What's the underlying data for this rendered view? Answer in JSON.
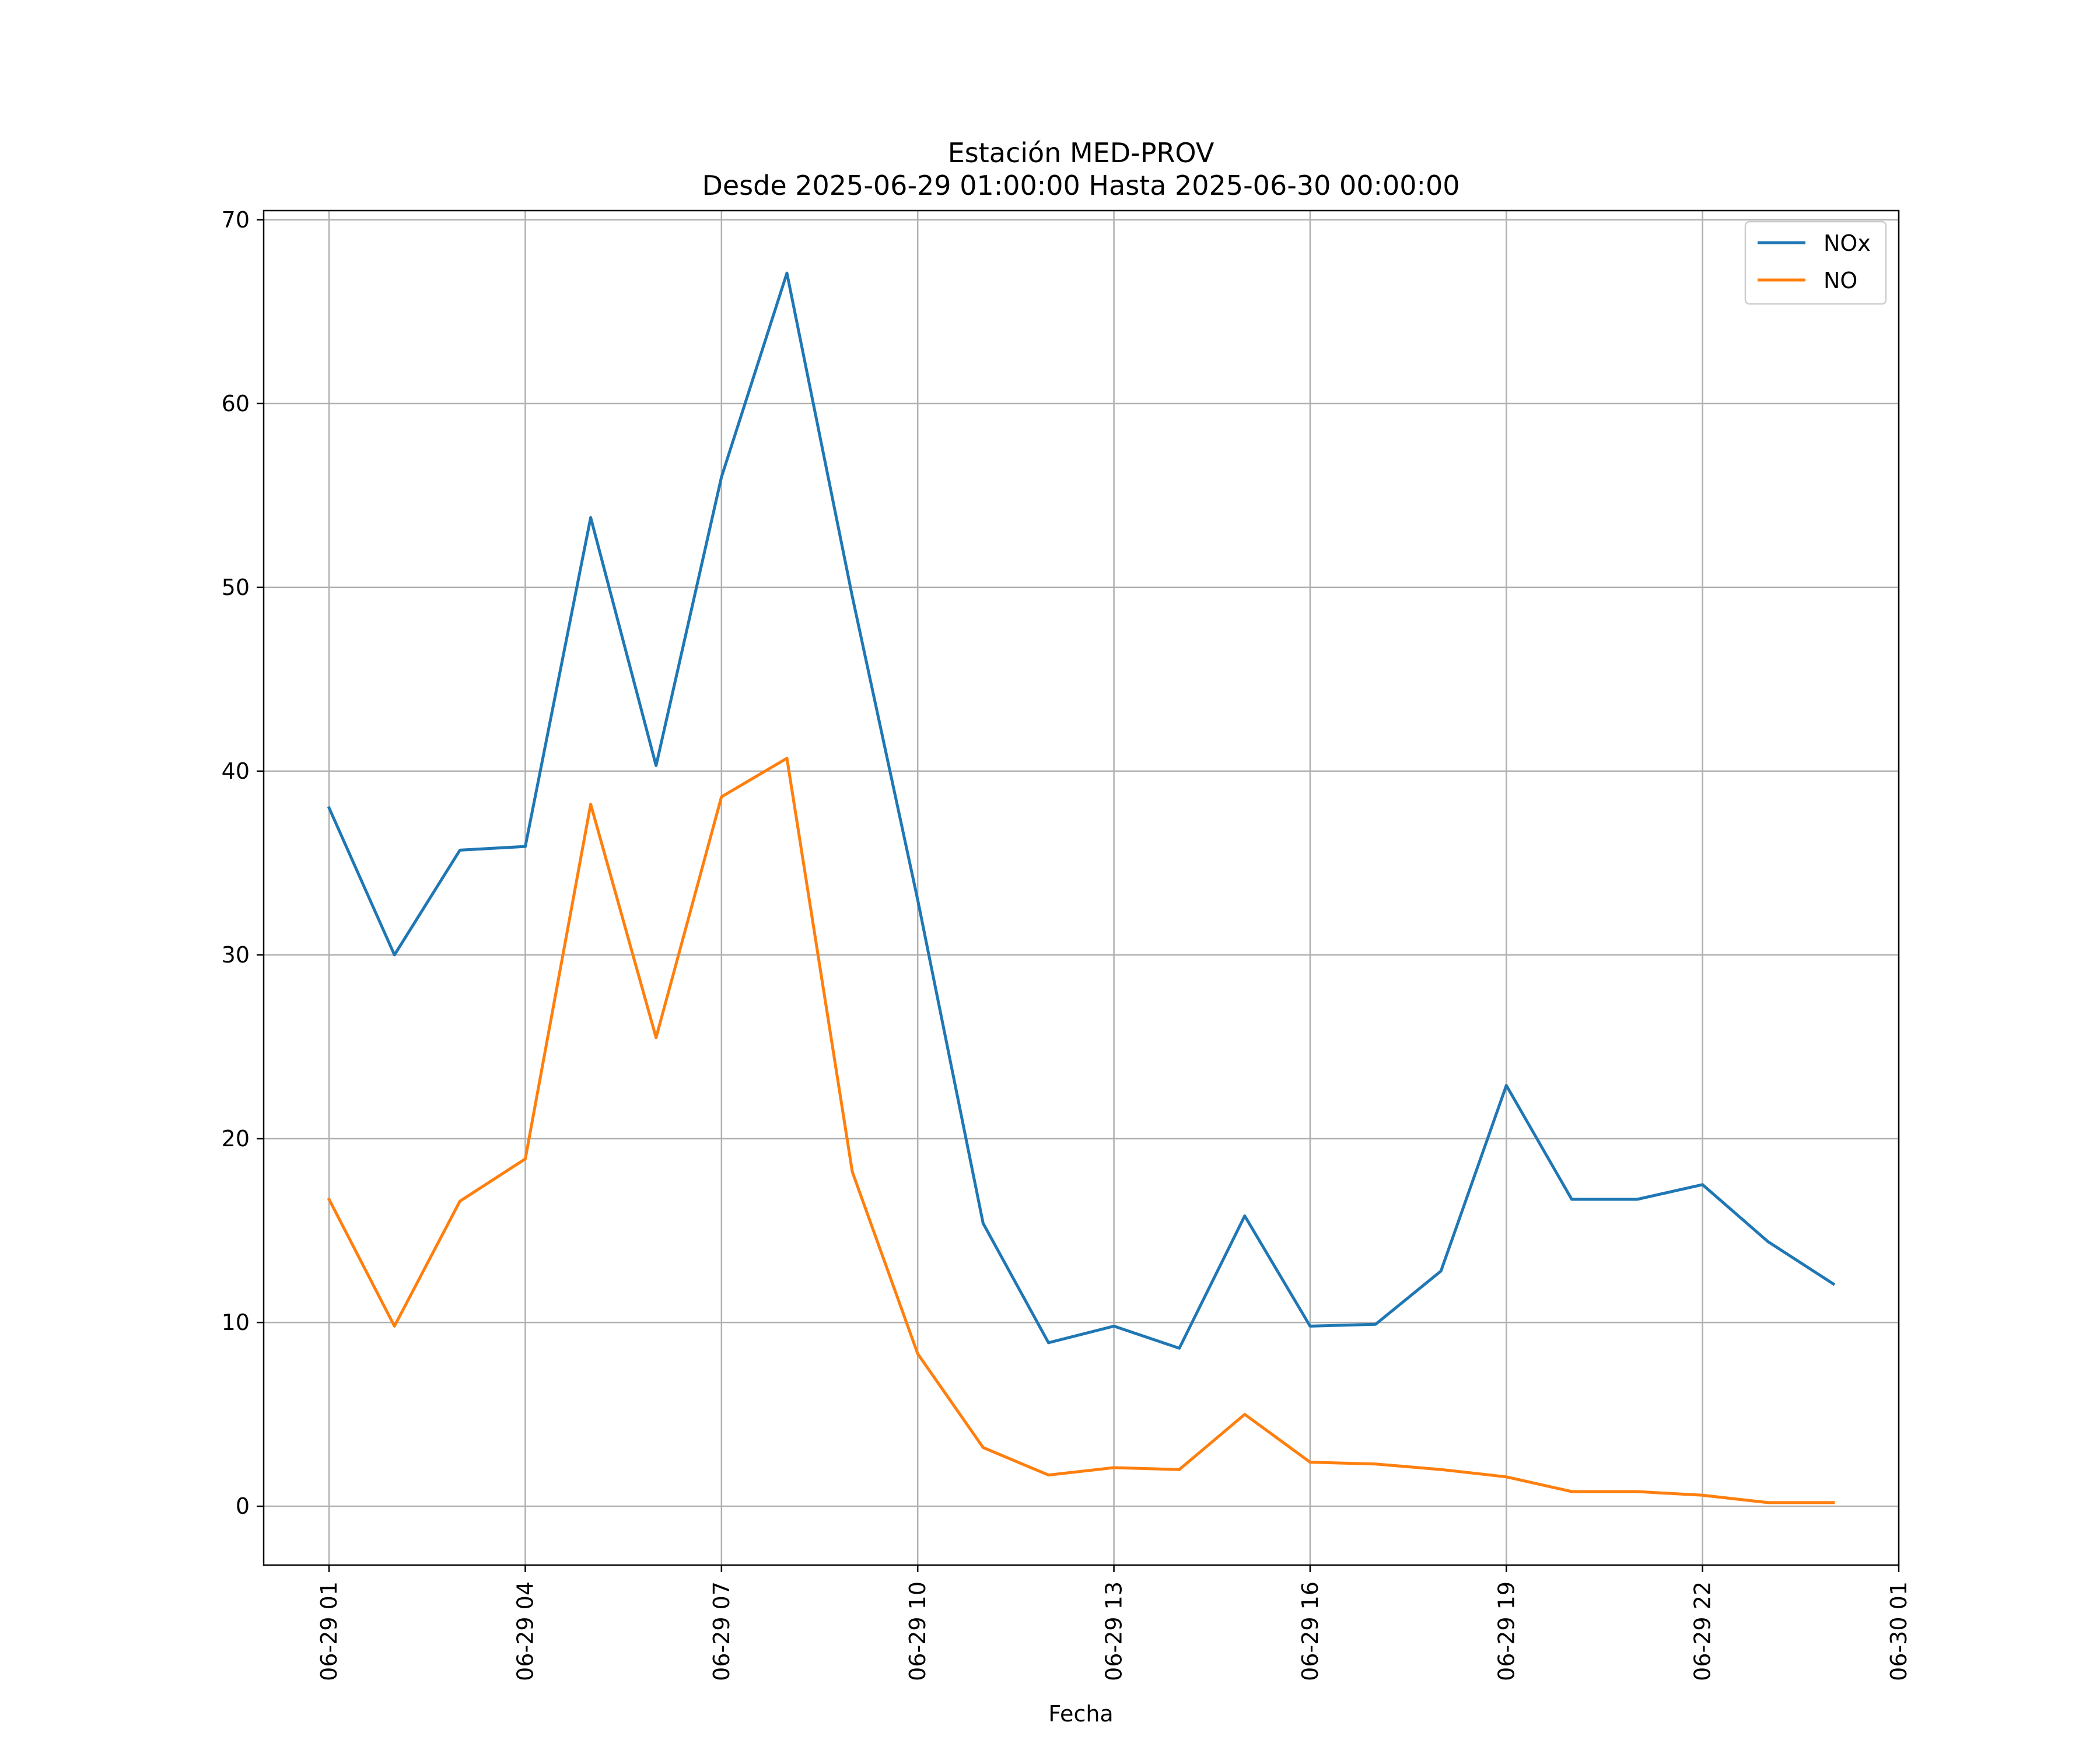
{
  "chart_data": {
    "type": "line",
    "title": "Estación MED-PROV",
    "subtitle": "Desde 2025-06-29 01:00:00 Hasta 2025-06-30 00:00:00",
    "xlabel": "Fecha",
    "ylabel": "",
    "x": [
      "2025-06-29 01:00",
      "2025-06-29 02:00",
      "2025-06-29 03:00",
      "2025-06-29 04:00",
      "2025-06-29 05:00",
      "2025-06-29 06:00",
      "2025-06-29 07:00",
      "2025-06-29 08:00",
      "2025-06-29 09:00",
      "2025-06-29 10:00",
      "2025-06-29 11:00",
      "2025-06-29 12:00",
      "2025-06-29 13:00",
      "2025-06-29 14:00",
      "2025-06-29 15:00",
      "2025-06-29 16:00",
      "2025-06-29 17:00",
      "2025-06-29 18:00",
      "2025-06-29 19:00",
      "2025-06-29 20:00",
      "2025-06-29 21:00",
      "2025-06-29 22:00",
      "2025-06-29 23:00",
      "2025-06-30 00:00"
    ],
    "series": [
      {
        "name": "NOx",
        "color": "#1f77b4",
        "values": [
          38.0,
          30.0,
          35.7,
          35.9,
          53.8,
          40.3,
          56.0,
          67.1,
          49.5,
          33.0,
          15.4,
          8.9,
          9.8,
          8.6,
          15.8,
          9.8,
          9.9,
          12.8,
          22.9,
          16.7,
          16.7,
          17.5,
          14.4,
          12.1
        ]
      },
      {
        "name": "NO",
        "color": "#ff7f0e",
        "values": [
          16.7,
          9.8,
          16.6,
          18.9,
          38.2,
          25.5,
          38.6,
          40.7,
          18.2,
          8.3,
          3.2,
          1.7,
          2.1,
          2.0,
          5.0,
          2.4,
          2.3,
          2.0,
          1.6,
          0.8,
          0.8,
          0.6,
          0.2,
          0.2
        ]
      }
    ],
    "xticks": [
      "06-29 01",
      "06-29 04",
      "06-29 07",
      "06-29 10",
      "06-29 13",
      "06-29 16",
      "06-29 19",
      "06-29 22",
      "06-30 01"
    ],
    "xlim": [
      "2025-06-29 00:00",
      "2025-06-30 01:00"
    ],
    "yticks": [
      0,
      10,
      20,
      30,
      40,
      50,
      60,
      70
    ],
    "ylim": [
      -3.2,
      70.5
    ],
    "grid": true,
    "legend": "top-right"
  }
}
